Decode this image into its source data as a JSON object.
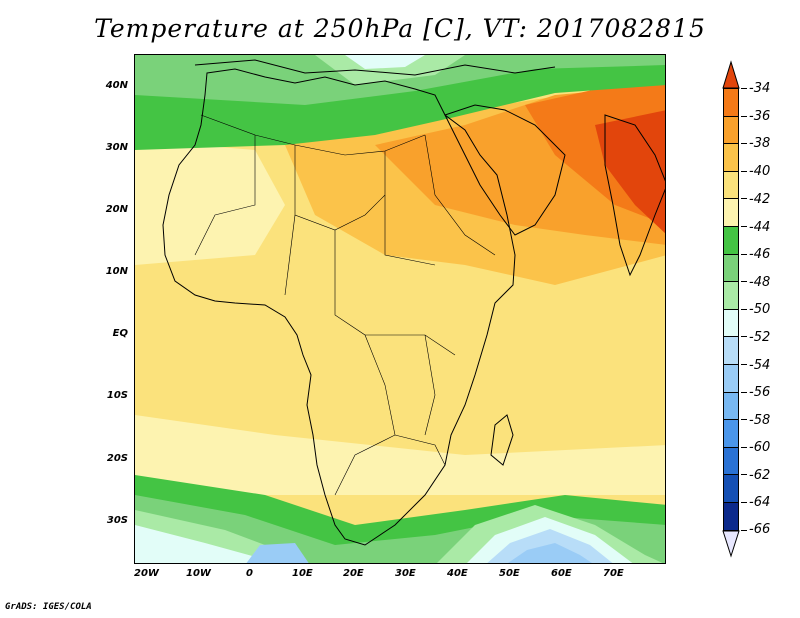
{
  "title": "Temperature at 250hPa [C], VT: 2017082815",
  "footer": "GrADS: IGES/COLA",
  "map": {
    "lat_labels": [
      "40N",
      "30N",
      "20N",
      "10N",
      "EQ",
      "10S",
      "20S",
      "30S"
    ],
    "lon_labels": [
      "20W",
      "10W",
      "0",
      "10E",
      "20E",
      "30E",
      "40E",
      "50E",
      "60E",
      "70E"
    ]
  },
  "colorbar": {
    "labels": [
      "-34",
      "-36",
      "-38",
      "-40",
      "-42",
      "-44",
      "-46",
      "-48",
      "-50",
      "-52",
      "-54",
      "-56",
      "-58",
      "-60",
      "-62",
      "-64",
      "-66"
    ],
    "colors": [
      "#e2450c",
      "#f47a18",
      "#f9a12c",
      "#fbc34a",
      "#fbe27c",
      "#fdf3b0",
      "#44c444",
      "#7ad27a",
      "#aaeaa6",
      "#e2fdf8",
      "#b8ddf8",
      "#9accf6",
      "#78b8f2",
      "#4b96ea",
      "#2a72d4",
      "#1550b4",
      "#0c2a8c",
      "#081470",
      "#e8e8ff"
    ]
  }
}
